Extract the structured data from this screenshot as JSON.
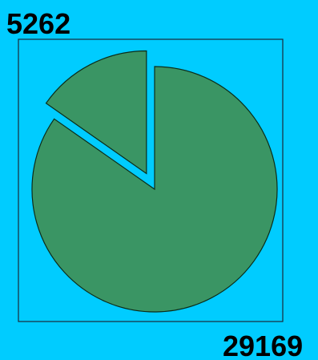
{
  "chart_data": {
    "type": "pie",
    "values": [
      5262,
      29169
    ],
    "labels": [
      "5262",
      "29169"
    ],
    "exploded": [
      true,
      false
    ],
    "colors": {
      "background": "#00ccff",
      "slice_fill": "#3a9564",
      "slice_stroke": "#0b2d1a",
      "frame_stroke": "#1a2a3a",
      "label": "#000000"
    },
    "start_angle_deg": 0,
    "direction": "counterclockwise",
    "frame": true,
    "legend": "none"
  }
}
